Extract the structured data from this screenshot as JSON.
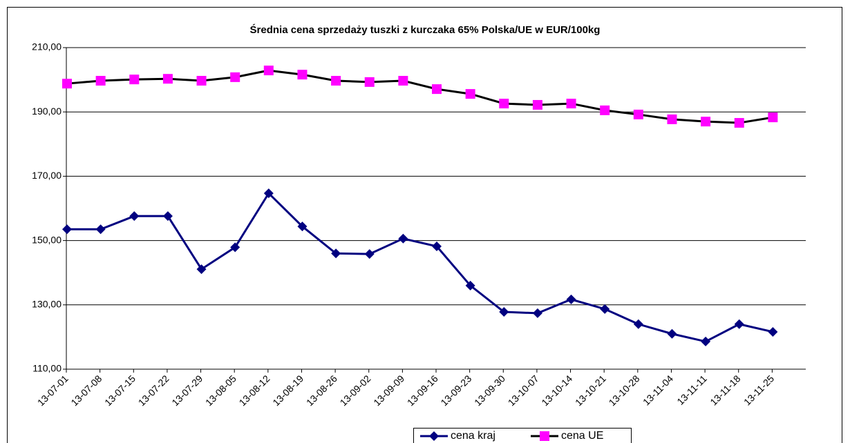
{
  "chart_data": {
    "type": "line",
    "title": "Średnia cena sprzedaży tuszki z kurczaka 65% Polska/UE w EUR/100kg",
    "categories": [
      "13-07-01",
      "13-07-08",
      "13-07-15",
      "13-07-22",
      "13-07-29",
      "13-08-05",
      "13-08-12",
      "13-08-19",
      "13-08-26",
      "13-09-02",
      "13-09-09",
      "13-09-16",
      "13-09-23",
      "13-09-30",
      "13-10-07",
      "13-10-14",
      "13-10-21",
      "13-10-28",
      "13-11-04",
      "13-11-11",
      "13-11-18",
      "13-11-25"
    ],
    "series": [
      {
        "name": "cena kraj",
        "color": "#000080",
        "line_color": "#000080",
        "marker": "diamond",
        "values": [
          153.5,
          153.5,
          157.6,
          157.6,
          141.1,
          147.9,
          164.7,
          154.4,
          146.0,
          145.8,
          150.6,
          148.2,
          136.0,
          127.8,
          127.4,
          131.7,
          128.7,
          124.0,
          121.0,
          118.6,
          124.0,
          121.6
        ]
      },
      {
        "name": "cena UE",
        "color": "#ff00ff",
        "line_color": "#000000",
        "marker": "square",
        "values": [
          198.8,
          199.7,
          200.1,
          200.3,
          199.7,
          200.8,
          202.9,
          201.6,
          199.7,
          199.3,
          199.7,
          197.1,
          195.6,
          192.6,
          192.2,
          192.6,
          190.5,
          189.2,
          187.7,
          187.0,
          186.6,
          188.3
        ]
      }
    ],
    "ylim": [
      110,
      210
    ],
    "yticks": [
      {
        "value": 110,
        "label": "110,00"
      },
      {
        "value": 130,
        "label": "130,00"
      },
      {
        "value": 150,
        "label": "150,00"
      },
      {
        "value": 170,
        "label": "170,00"
      },
      {
        "value": 190,
        "label": "190,00"
      },
      {
        "value": 210,
        "label": "210,00"
      }
    ],
    "grid": true,
    "legend": "bottom"
  }
}
